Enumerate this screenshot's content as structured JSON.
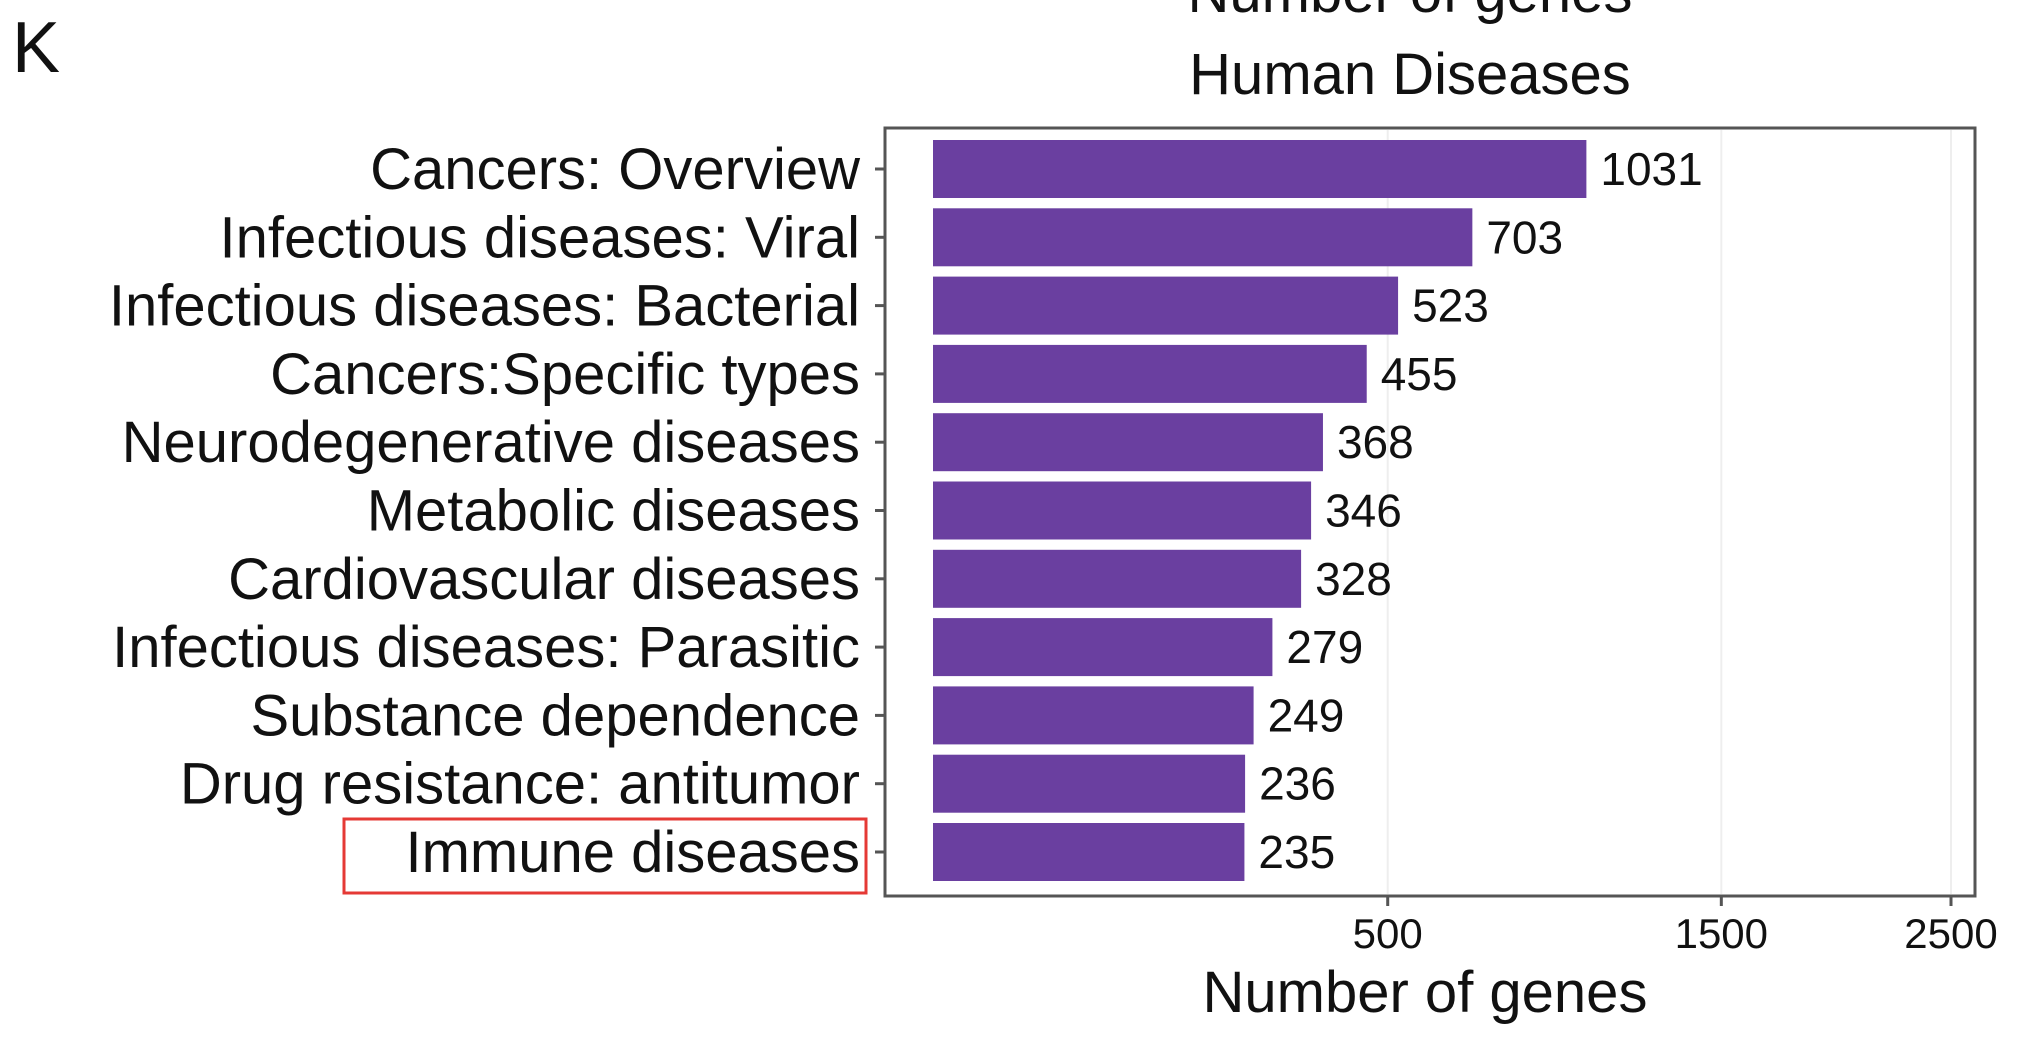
{
  "panel_letter": "K",
  "top_title_fragment": "Number of genes",
  "chart_data": {
    "type": "bar",
    "orientation": "horizontal",
    "title": "Human Diseases",
    "xlabel": "Number of genes",
    "ylabel": "",
    "x_scale": "sqrt",
    "xlim": [
      0,
      2800
    ],
    "x_ticks": [
      500,
      1500,
      2500
    ],
    "grid": false,
    "bar_color": "#6a3fa0",
    "highlight_color": "#e53935",
    "highlighted_category": "Immune diseases",
    "categories": [
      "Cancers: Overview",
      "Infectious diseases: Viral",
      "Infectious diseases: Bacterial",
      "Cancers:Specific types",
      "Neurodegenerative diseases",
      "Metabolic diseases",
      "Cardiovascular diseases",
      "Infectious diseases: Parasitic",
      "Substance dependence",
      "Drug resistance: antitumor",
      "Immune diseases"
    ],
    "values": [
      1031,
      703,
      523,
      455,
      368,
      346,
      328,
      279,
      249,
      236,
      235
    ]
  }
}
